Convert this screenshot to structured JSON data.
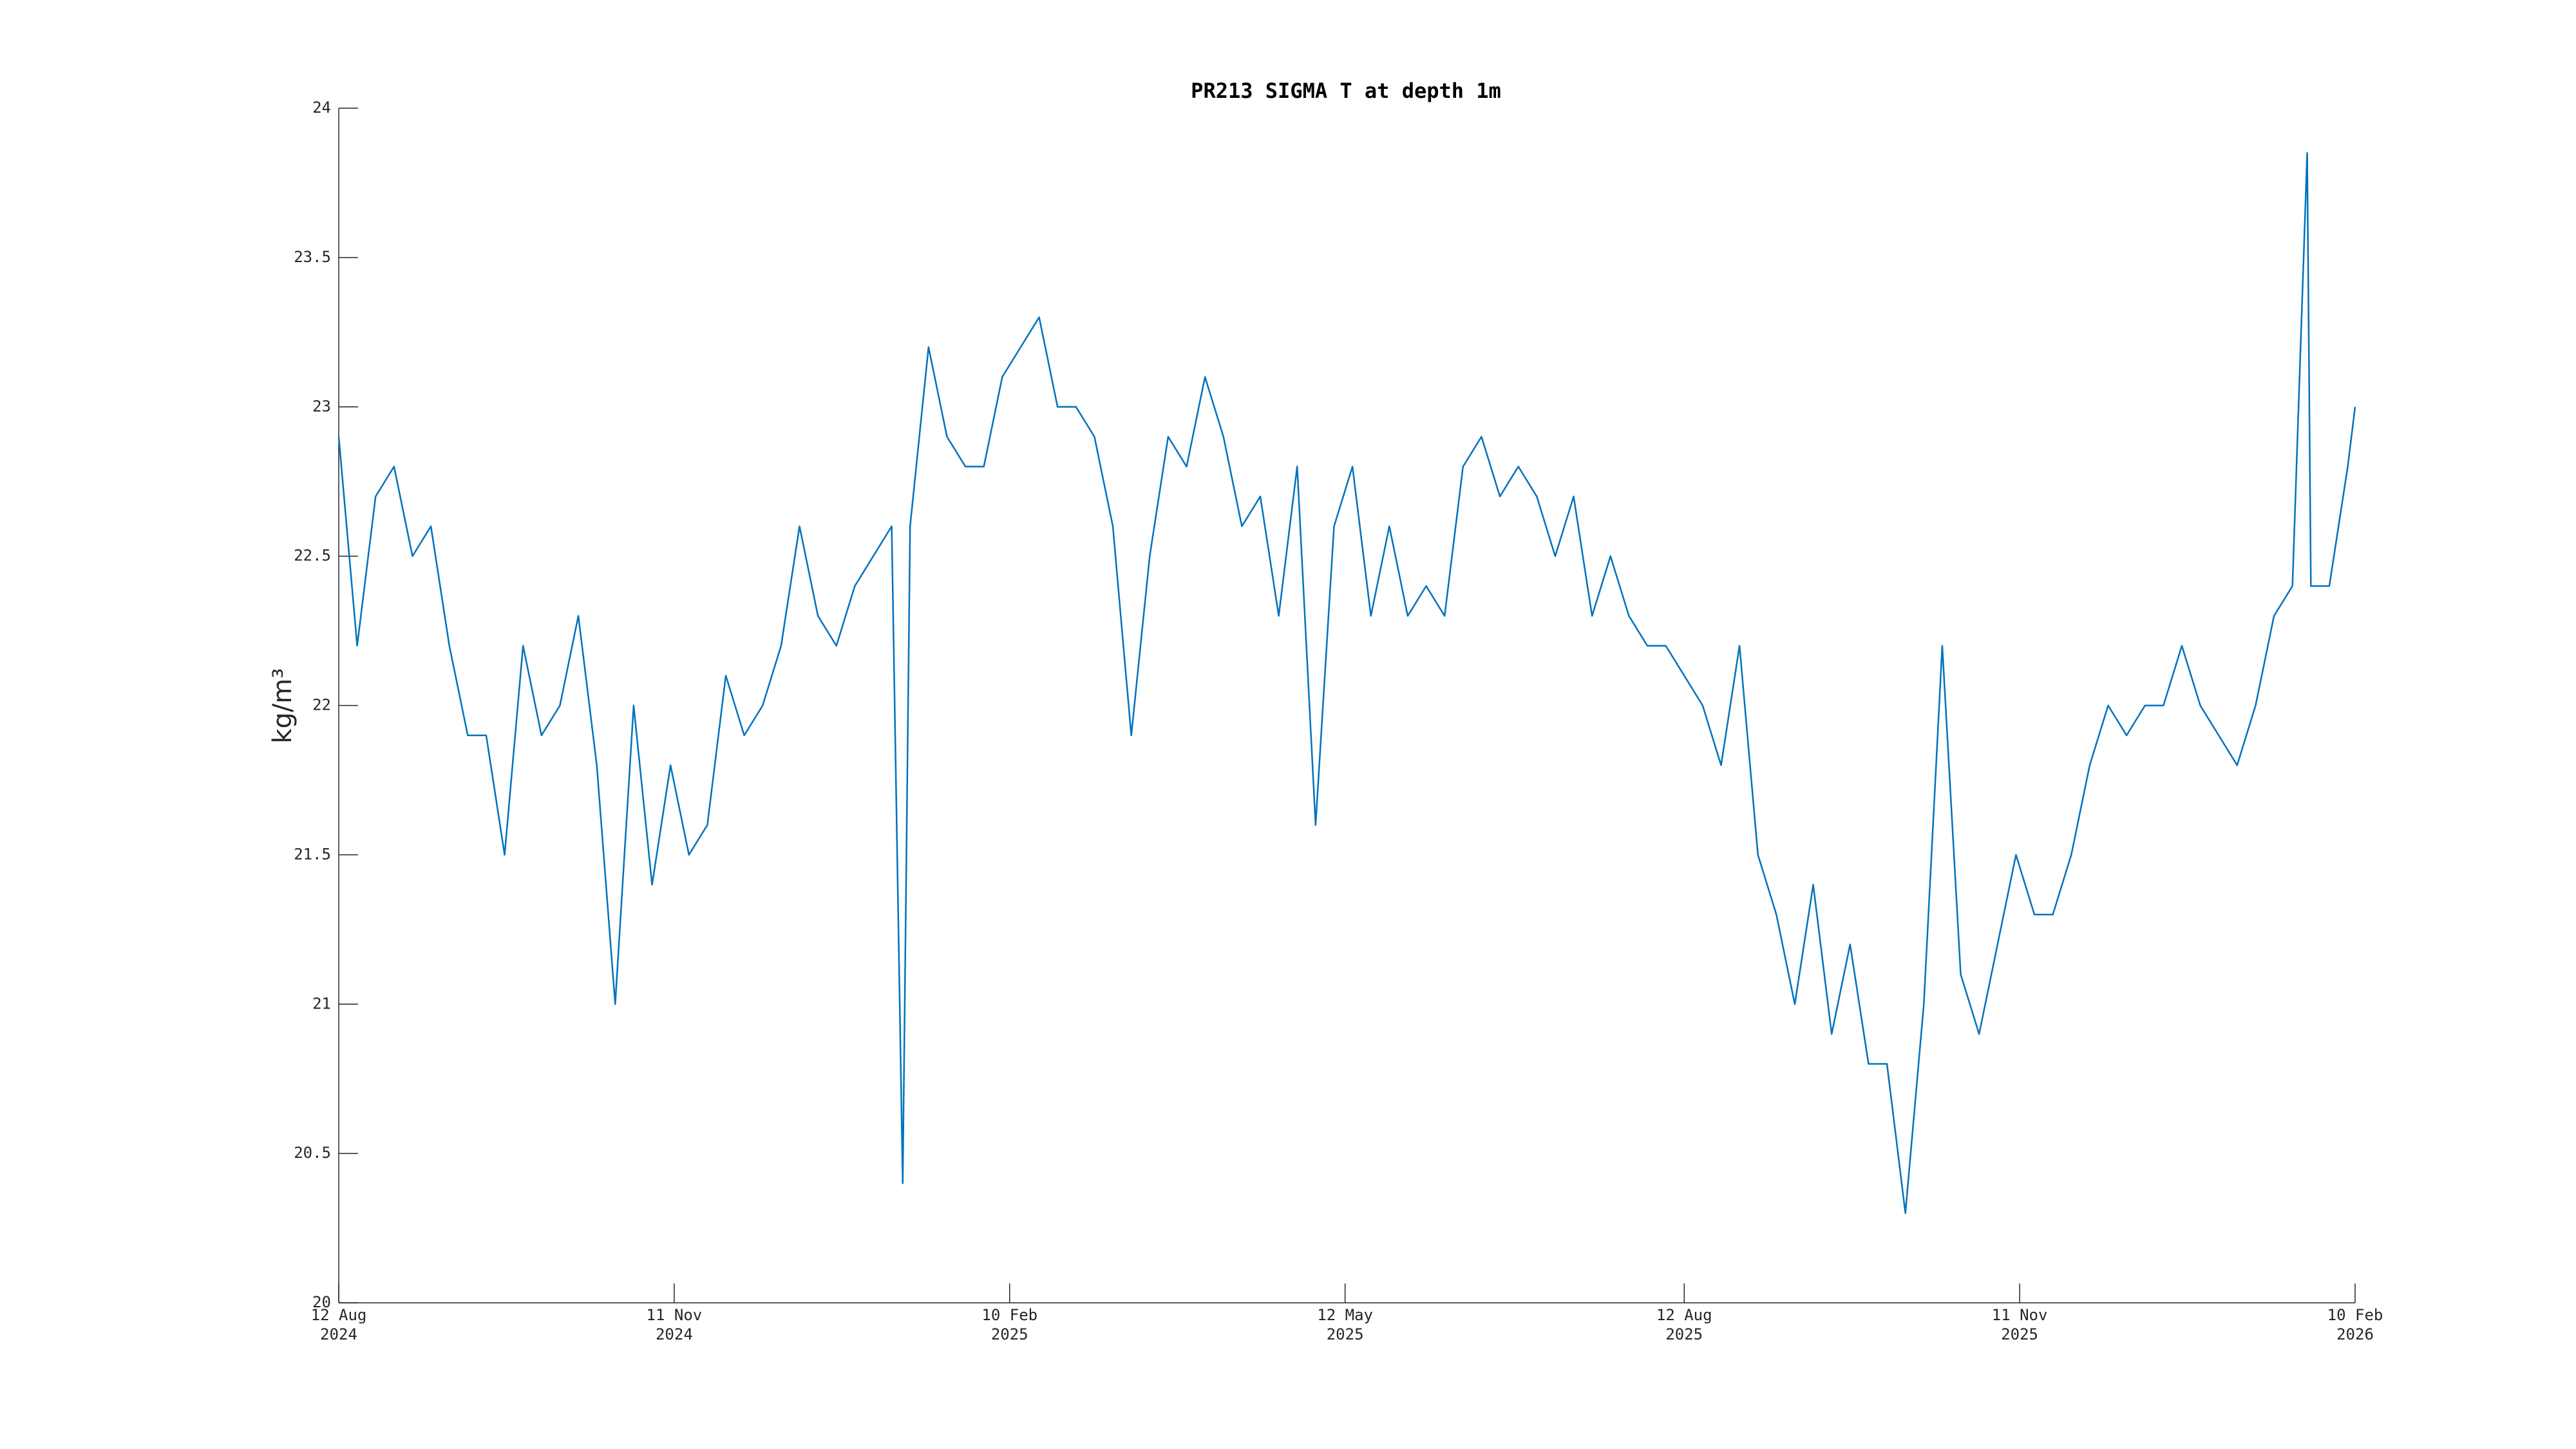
{
  "chart_data": {
    "type": "line",
    "title": "PR213 SIGMA T at depth 1m",
    "y_label": "kg/m³",
    "x": [
      "2024-08-12",
      "2024-08-17",
      "2024-08-22",
      "2024-08-27",
      "2024-09-01",
      "2024-09-06",
      "2024-09-11",
      "2024-09-16",
      "2024-09-21",
      "2024-09-26",
      "2024-10-01",
      "2024-10-06",
      "2024-10-11",
      "2024-10-16",
      "2024-10-21",
      "2024-10-26",
      "2024-10-31",
      "2024-11-05",
      "2024-11-10",
      "2024-11-15",
      "2024-11-20",
      "2024-11-25",
      "2024-11-30",
      "2024-12-05",
      "2024-12-10",
      "2024-12-15",
      "2024-12-20",
      "2024-12-25",
      "2024-12-30",
      "2025-01-04",
      "2025-01-09",
      "2025-01-12",
      "2025-01-14",
      "2025-01-19",
      "2025-01-24",
      "2025-01-29",
      "2025-02-03",
      "2025-02-08",
      "2025-02-13",
      "2025-02-18",
      "2025-02-23",
      "2025-02-28",
      "2025-03-05",
      "2025-03-10",
      "2025-03-15",
      "2025-03-20",
      "2025-03-25",
      "2025-03-30",
      "2025-04-04",
      "2025-04-09",
      "2025-04-14",
      "2025-04-19",
      "2025-04-24",
      "2025-04-29",
      "2025-05-04",
      "2025-05-09",
      "2025-05-14",
      "2025-05-19",
      "2025-05-24",
      "2025-05-29",
      "2025-06-03",
      "2025-06-08",
      "2025-06-13",
      "2025-06-18",
      "2025-06-23",
      "2025-06-28",
      "2025-07-03",
      "2025-07-08",
      "2025-07-13",
      "2025-07-18",
      "2025-07-23",
      "2025-07-28",
      "2025-08-02",
      "2025-08-07",
      "2025-08-12",
      "2025-08-17",
      "2025-08-22",
      "2025-08-27",
      "2025-09-01",
      "2025-09-06",
      "2025-09-11",
      "2025-09-16",
      "2025-09-21",
      "2025-09-26",
      "2025-10-01",
      "2025-10-06",
      "2025-10-11",
      "2025-10-16",
      "2025-10-21",
      "2025-10-26",
      "2025-10-31",
      "2025-11-05",
      "2025-11-10",
      "2025-11-15",
      "2025-11-20",
      "2025-11-25",
      "2025-11-30",
      "2025-12-05",
      "2025-12-10",
      "2025-12-15",
      "2025-12-20",
      "2025-12-25",
      "2025-12-30",
      "2026-01-04",
      "2026-01-09",
      "2026-01-14",
      "2026-01-19",
      "2026-01-24",
      "2026-01-28",
      "2026-01-29",
      "2026-02-03",
      "2026-02-08",
      "2026-02-10"
    ],
    "series": [
      {
        "name": "SIGMA T",
        "color": "#0072bd",
        "values": [
          22.9,
          22.2,
          22.7,
          22.8,
          22.5,
          22.6,
          22.2,
          21.9,
          21.9,
          21.5,
          22.2,
          21.9,
          22.0,
          22.3,
          21.8,
          21.0,
          22.0,
          21.4,
          21.8,
          21.5,
          21.6,
          22.1,
          21.9,
          22.0,
          22.2,
          22.6,
          22.3,
          22.2,
          22.4,
          22.5,
          22.6,
          20.4,
          22.6,
          23.2,
          22.9,
          22.8,
          22.8,
          23.1,
          23.2,
          23.3,
          23.0,
          23.0,
          22.9,
          22.6,
          21.9,
          22.5,
          22.9,
          22.8,
          23.1,
          22.9,
          22.6,
          22.7,
          22.3,
          22.8,
          21.6,
          22.6,
          22.8,
          22.3,
          22.6,
          22.3,
          22.4,
          22.3,
          22.8,
          22.9,
          22.7,
          22.8,
          22.7,
          22.5,
          22.7,
          22.3,
          22.5,
          22.3,
          22.2,
          22.2,
          22.1,
          22.0,
          21.8,
          22.2,
          21.5,
          21.3,
          21.0,
          21.4,
          20.9,
          21.2,
          20.8,
          20.8,
          20.3,
          21.0,
          22.2,
          21.1,
          20.9,
          21.2,
          21.5,
          21.3,
          21.3,
          21.5,
          21.8,
          22.0,
          21.9,
          22.0,
          22.0,
          22.2,
          22.0,
          21.9,
          21.8,
          22.0,
          22.3,
          22.4,
          23.85,
          22.4,
          22.4,
          22.8,
          23.0
        ]
      }
    ],
    "xlim": [
      "2024-08-12",
      "2026-02-10"
    ],
    "xticks": [
      {
        "value": "2024-08-12",
        "label": "12 Aug\n2024"
      },
      {
        "value": "2024-11-11",
        "label": "11 Nov\n2024"
      },
      {
        "value": "2025-02-10",
        "label": "10 Feb\n2025"
      },
      {
        "value": "2025-05-12",
        "label": "12 May\n2025"
      },
      {
        "value": "2025-08-12",
        "label": "12 Aug\n2025"
      },
      {
        "value": "2025-11-11",
        "label": "11 Nov\n2025"
      },
      {
        "value": "2026-02-10",
        "label": "10 Feb\n2026"
      }
    ],
    "ylim": [
      20,
      24
    ],
    "yticks": [
      20,
      20.5,
      21,
      21.5,
      22,
      22.5,
      23,
      23.5,
      24
    ],
    "grid": false
  }
}
